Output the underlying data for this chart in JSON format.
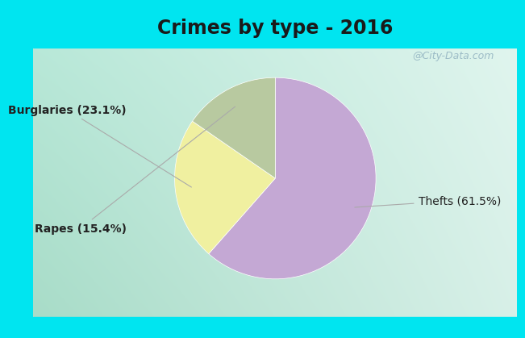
{
  "title": "Crimes by type - 2016",
  "slices": [
    {
      "label": "Thefts (61.5%)",
      "value": 61.5,
      "color": "#C4A8D4"
    },
    {
      "label": "Burglaries (23.1%)",
      "value": 23.1,
      "color": "#F0F0A0"
    },
    {
      "label": "Rapes (15.4%)",
      "value": 15.4,
      "color": "#B8C9A0"
    }
  ],
  "background_top": "#00E5F0",
  "background_bottom": "#00E5F0",
  "bg_left": "#A8D8C4",
  "bg_right": "#E8F5F0",
  "title_fontsize": 17,
  "label_fontsize": 10,
  "watermark": "@City-Data.com",
  "startangle": 90,
  "top_bar_height": 0.125,
  "bottom_bar_height": 0.04
}
